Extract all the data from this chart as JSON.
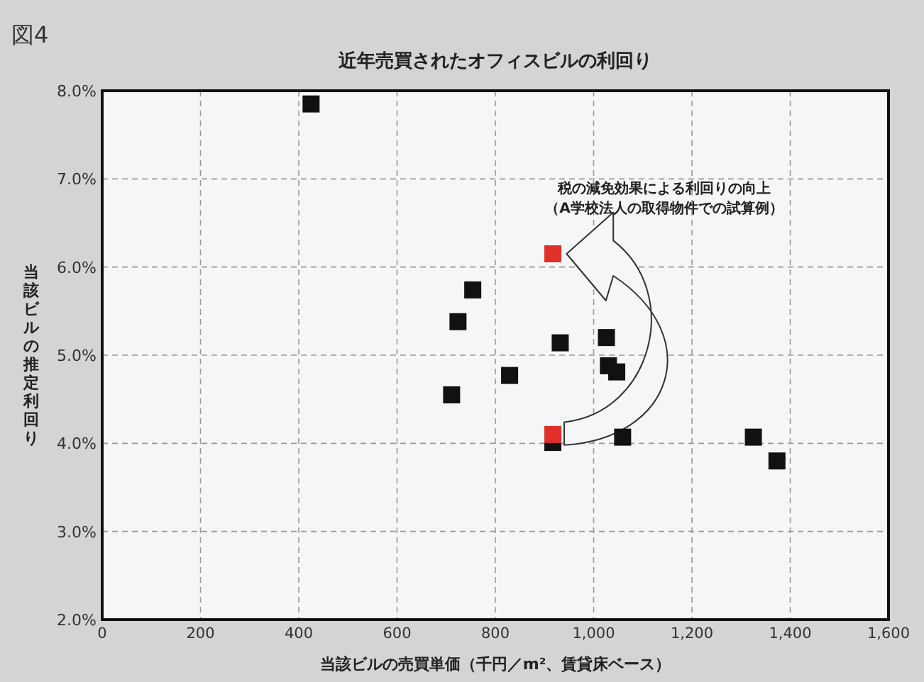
{
  "chart_data": {
    "type": "scatter",
    "title": "近年売買されたオフィスビルの利回り",
    "xlabel": "当該ビルの売買単価（千円／m²、賃貸床ベース）",
    "ylabel": "当該ビルの推定利回り",
    "annotations": [
      "図4",
      "税の減免効果による利回りの向上",
      "（A学校法人の取得物件での試算例）"
    ],
    "series": [
      {
        "color": "#111111",
        "x": [
          425,
          711,
          724,
          754,
          829,
          932,
          917,
          1026,
          1030,
          1047,
          1059,
          1325,
          1373
        ],
        "values": [
          7.85,
          4.55,
          5.38,
          5.74,
          4.77,
          5.14,
          4.01,
          5.2,
          4.88,
          4.81,
          4.07,
          4.07,
          3.8
        ]
      },
      {
        "color": "#e0302a",
        "x": [
          917,
          917
        ],
        "values": [
          4.1,
          6.15
        ]
      }
    ],
    "xlim": [
      0,
      1600
    ],
    "ylim": [
      2,
      8
    ],
    "xticks": [
      0,
      200,
      400,
      600,
      800,
      {
        "value": 1000,
        "label": "1,000"
      },
      {
        "value": 1200,
        "label": "1,200"
      },
      {
        "value": 1400,
        "label": "1,400"
      },
      {
        "value": 1600,
        "label": "1,600"
      }
    ],
    "yticks": [
      {
        "value": 2,
        "label": "2.0%"
      },
      {
        "value": 3,
        "label": "3.0%"
      },
      {
        "value": 4,
        "label": "4.0%"
      },
      {
        "value": 5,
        "label": "5.0%"
      },
      {
        "value": 6,
        "label": "6.0%"
      },
      {
        "value": 7,
        "label": "7.0%"
      },
      {
        "value": 8,
        "label": "8.0%"
      }
    ],
    "grid": true,
    "marker": "square"
  }
}
